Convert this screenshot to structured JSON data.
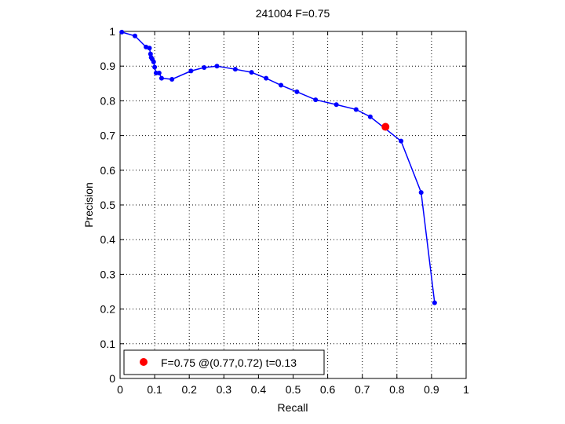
{
  "chart_data": {
    "type": "line",
    "title": "241004 F=0.75",
    "xlabel": "Recall",
    "ylabel": "Precision",
    "xlim": [
      0,
      1
    ],
    "ylim": [
      0,
      1
    ],
    "grid": true,
    "x_ticks": [
      "0",
      "0.1",
      "0.2",
      "0.3",
      "0.4",
      "0.5",
      "0.6",
      "0.7",
      "0.8",
      "0.9",
      "1"
    ],
    "y_ticks": [
      "0",
      "0.1",
      "0.2",
      "0.3",
      "0.4",
      "0.5",
      "0.6",
      "0.7",
      "0.8",
      "0.9",
      "1"
    ],
    "series": [
      {
        "color": "#0000ff",
        "points": [
          {
            "x": 0.005,
            "y": 0.998
          },
          {
            "x": 0.043,
            "y": 0.987
          },
          {
            "x": 0.075,
            "y": 0.955
          },
          {
            "x": 0.085,
            "y": 0.952
          },
          {
            "x": 0.088,
            "y": 0.935
          },
          {
            "x": 0.09,
            "y": 0.925
          },
          {
            "x": 0.093,
            "y": 0.92
          },
          {
            "x": 0.097,
            "y": 0.912
          },
          {
            "x": 0.1,
            "y": 0.897
          },
          {
            "x": 0.104,
            "y": 0.88
          },
          {
            "x": 0.113,
            "y": 0.88
          },
          {
            "x": 0.12,
            "y": 0.865
          },
          {
            "x": 0.15,
            "y": 0.862
          },
          {
            "x": 0.205,
            "y": 0.886
          },
          {
            "x": 0.243,
            "y": 0.896
          },
          {
            "x": 0.28,
            "y": 0.9
          },
          {
            "x": 0.333,
            "y": 0.891
          },
          {
            "x": 0.38,
            "y": 0.882
          },
          {
            "x": 0.422,
            "y": 0.865
          },
          {
            "x": 0.465,
            "y": 0.845
          },
          {
            "x": 0.511,
            "y": 0.826
          },
          {
            "x": 0.565,
            "y": 0.803
          },
          {
            "x": 0.625,
            "y": 0.789
          },
          {
            "x": 0.682,
            "y": 0.775
          },
          {
            "x": 0.723,
            "y": 0.754
          },
          {
            "x": 0.812,
            "y": 0.684
          },
          {
            "x": 0.87,
            "y": 0.536
          },
          {
            "x": 0.909,
            "y": 0.218
          }
        ]
      }
    ],
    "marker": {
      "x": 0.767,
      "y": 0.725,
      "color": "#ff0000"
    },
    "legend": {
      "label": "F=0.75 @(0.77,0.72) t=0.13",
      "placement": "bottom-left"
    }
  }
}
